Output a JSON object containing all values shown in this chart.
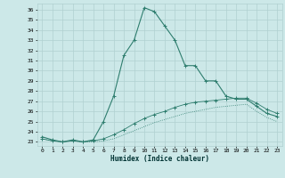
{
  "xlabel": "Humidex (Indice chaleur)",
  "xlim": [
    -0.5,
    23.5
  ],
  "ylim": [
    22.6,
    36.6
  ],
  "yticks": [
    23,
    24,
    25,
    26,
    27,
    28,
    29,
    30,
    31,
    32,
    33,
    34,
    35,
    36
  ],
  "xticks": [
    0,
    1,
    2,
    3,
    4,
    5,
    6,
    7,
    8,
    9,
    10,
    11,
    12,
    13,
    14,
    15,
    16,
    17,
    18,
    19,
    20,
    21,
    22,
    23
  ],
  "background_color": "#cce8e8",
  "grid_color": "#b0d0d0",
  "line_color": "#2e7d6e",
  "line1_x": [
    0,
    1,
    2,
    3,
    4,
    5,
    6,
    7,
    8,
    9,
    10,
    11,
    12,
    13,
    14,
    15,
    16,
    17,
    18,
    19,
    20,
    21,
    22,
    23
  ],
  "line1_y": [
    23.5,
    23.2,
    23.0,
    23.2,
    23.0,
    23.2,
    25.0,
    27.5,
    31.5,
    33.0,
    36.2,
    35.8,
    34.4,
    33.0,
    30.5,
    30.5,
    29.0,
    29.0,
    27.5,
    27.2,
    27.2,
    26.5,
    25.8,
    25.5
  ],
  "line2_x": [
    0,
    1,
    2,
    3,
    4,
    5,
    6,
    7,
    8,
    9,
    10,
    11,
    12,
    13,
    14,
    15,
    16,
    17,
    18,
    19,
    20,
    21,
    22,
    23
  ],
  "line2_y": [
    23.3,
    23.1,
    23.0,
    23.1,
    23.0,
    23.1,
    23.3,
    23.7,
    24.2,
    24.8,
    25.3,
    25.7,
    26.0,
    26.4,
    26.7,
    26.9,
    27.0,
    27.1,
    27.2,
    27.3,
    27.3,
    26.8,
    26.2,
    25.8
  ],
  "line3_x": [
    0,
    1,
    2,
    3,
    4,
    5,
    6,
    7,
    8,
    9,
    10,
    11,
    12,
    13,
    14,
    15,
    16,
    17,
    18,
    19,
    20,
    21,
    22,
    23
  ],
  "line3_y": [
    23.3,
    23.1,
    23.0,
    23.1,
    23.0,
    23.0,
    23.1,
    23.3,
    23.7,
    24.1,
    24.5,
    24.9,
    25.2,
    25.5,
    25.8,
    26.0,
    26.2,
    26.4,
    26.5,
    26.6,
    26.7,
    26.0,
    25.4,
    25.0
  ]
}
